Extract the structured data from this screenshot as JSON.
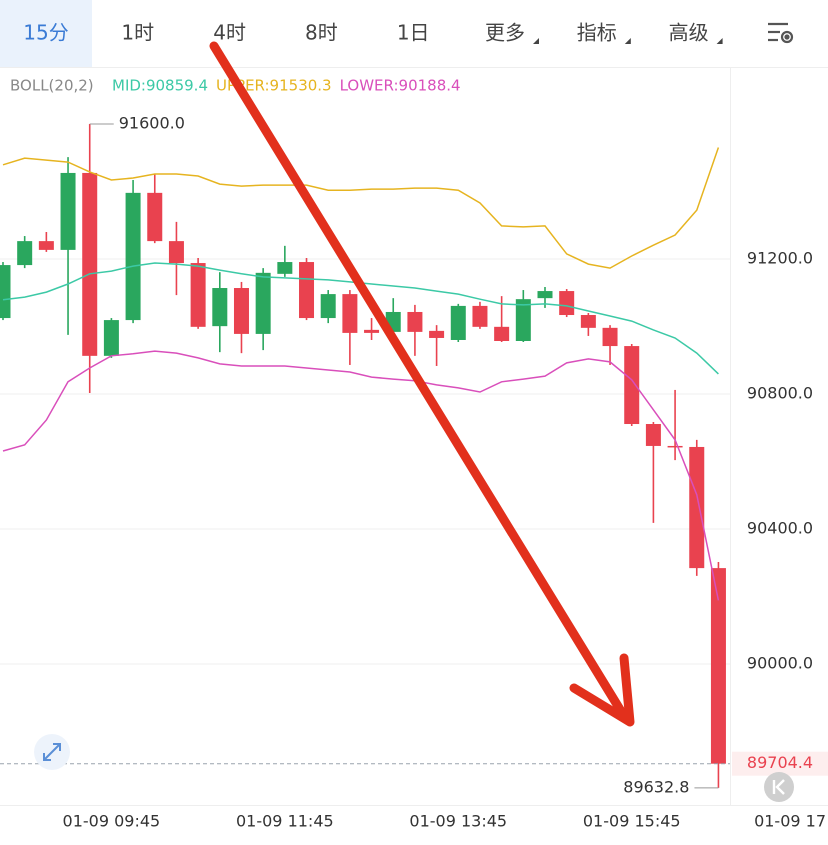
{
  "chart_data": {
    "type": "candlestick",
    "tabs": [
      "15分",
      "1时",
      "4时",
      "8时",
      "1日",
      "更多",
      "指标",
      "高级"
    ],
    "active_tab": 0,
    "dropdown_tabs": [
      5,
      6,
      7
    ],
    "indicator": "BOLL(20,2)",
    "categories": [
      null,
      null,
      null,
      null,
      null,
      "01-09 09:45",
      null,
      null,
      null,
      null,
      null,
      null,
      null,
      "01-09 11:45",
      null,
      null,
      null,
      null,
      null,
      null,
      null,
      "01-09 13:45",
      null,
      null,
      null,
      null,
      null,
      null,
      null,
      "01-09 15:45",
      null,
      null,
      null,
      null,
      null,
      null,
      null,
      "01-09 17"
    ],
    "open": [
      91025,
      91182,
      91253,
      91227,
      91455,
      90913,
      91019,
      91396,
      91253,
      91188,
      91001,
      91114,
      90978,
      91156,
      91191,
      91025,
      91096,
      90990,
      90984,
      91043,
      90987,
      90960,
      91061,
      90999,
      90957,
      91084,
      91105,
      91034,
      90996,
      90942,
      90711,
      90646,
      90643,
      90284,
      null,
      null,
      null,
      null
    ],
    "high": [
      91191,
      91268,
      91280,
      91502,
      91600,
      91025,
      91434,
      91452,
      91310,
      91203,
      91161,
      91132,
      91173,
      91239,
      91203,
      91108,
      91108,
      91025,
      91084,
      91064,
      91004,
      91067,
      91073,
      91090,
      91108,
      91117,
      91111,
      91040,
      91004,
      90948,
      90717,
      90812,
      90664,
      90302,
      null,
      null,
      null,
      null
    ],
    "low": [
      91019,
      91173,
      91221,
      90975,
      90803,
      90907,
      91010,
      91247,
      91093,
      90993,
      90924,
      90921,
      90930,
      91147,
      91019,
      91010,
      90886,
      90960,
      90972,
      90913,
      90883,
      90954,
      90993,
      90954,
      90954,
      91055,
      91028,
      90972,
      90886,
      90705,
      90418,
      90604,
      90261,
      89632.8,
      null,
      null,
      null,
      null
    ],
    "close": [
      91182,
      91253,
      91227,
      91455,
      90913,
      91019,
      91396,
      91253,
      91188,
      90999,
      91114,
      90978,
      91159,
      91191,
      91025,
      91096,
      90981,
      90981,
      91043,
      90984,
      90966,
      91061,
      90999,
      90957,
      91081,
      91105,
      91034,
      90996,
      90942,
      90711,
      90646,
      90643,
      90284,
      89704.4,
      null,
      null,
      null,
      null
    ],
    "up_color": "#2aa75e",
    "down_color": "#e9424f",
    "series": [
      {
        "name": "MID:90859.4",
        "color": "#3cc9a6",
        "values": [
          91079,
          91087,
          91102,
          91126,
          91156,
          91164,
          91179,
          91188,
          91185,
          91179,
          91167,
          91156,
          91147,
          91144,
          91141,
          91138,
          91132,
          91126,
          91120,
          91114,
          91105,
          91096,
          91081,
          91067,
          91064,
          91067,
          91061,
          91046,
          91031,
          91016,
          90990,
          90966,
          90921,
          90859.4,
          null,
          null,
          null,
          null
        ]
      },
      {
        "name": "UPPER:91530.3",
        "color": "#e6b420",
        "values": [
          91479,
          91499,
          91493,
          91487,
          91458,
          91434,
          91440,
          91452,
          91452,
          91446,
          91422,
          91416,
          91419,
          91419,
          91419,
          91404,
          91404,
          91407,
          91407,
          91410,
          91410,
          91404,
          91366,
          91298,
          91295,
          91298,
          91215,
          91185,
          91173,
          91209,
          91241,
          91271,
          91345,
          91530.3,
          null,
          null,
          null,
          null
        ]
      },
      {
        "name": "LOWER:90188.4",
        "color": "#d94fbb",
        "values": [
          90631,
          90649,
          90723,
          90836,
          90877,
          90913,
          90919,
          90927,
          90921,
          90907,
          90889,
          90883,
          90883,
          90883,
          90877,
          90871,
          90865,
          90850,
          90844,
          90839,
          90827,
          90818,
          90806,
          90836,
          90844,
          90853,
          90892,
          90904,
          90895,
          90842,
          90753,
          90664,
          90501,
          90188.4,
          null,
          null,
          null,
          null
        ]
      }
    ],
    "ylim": [
      89582,
      91766
    ],
    "yticks": [
      {
        "value": 90000,
        "label": "90000.0"
      },
      {
        "value": 90400,
        "label": "90400.0"
      },
      {
        "value": 90800,
        "label": "90800.0"
      },
      {
        "value": 91200,
        "label": "91200.0"
      }
    ],
    "grid": true,
    "annotations": [
      {
        "value": 91600,
        "label": "91600.0"
      },
      {
        "value": 89632.8,
        "label": "89632.8"
      }
    ],
    "last_price": {
      "value": 89704.4,
      "label": "89704.4"
    }
  }
}
